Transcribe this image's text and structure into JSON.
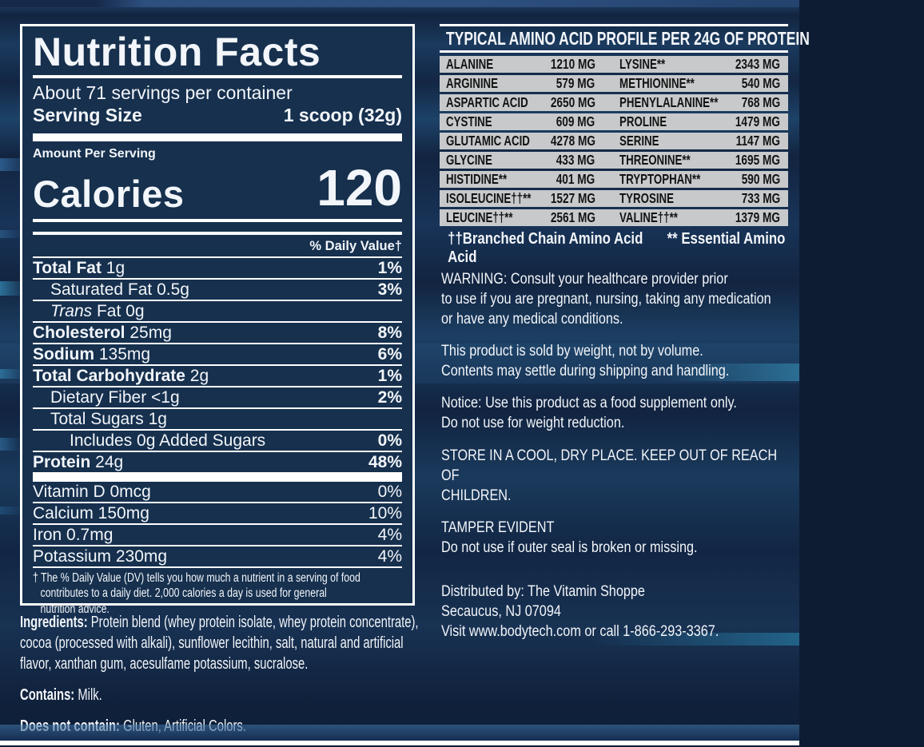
{
  "colors": {
    "background_navy": "#16304e",
    "panel_border": "#ffffff",
    "amino_row_silver": "#c7c9cb",
    "text_white": "#f2f5f9",
    "amino_text_black": "#131313"
  },
  "nutrition_panel": {
    "title": "Nutrition Facts",
    "servings": "About 71 servings per container",
    "serving_size_label": "Serving Size",
    "serving_size_value": "1 scoop (32g)",
    "amount_per_serving": "Amount Per Serving",
    "calories_label": "Calories",
    "calories_value": "120",
    "daily_value_header": "% Daily Value†",
    "rows": [
      {
        "bold": "Total Fat",
        "rest": "1g",
        "pct": "1%",
        "indent": 0,
        "pct_bold": true
      },
      {
        "rest": "Saturated Fat 0.5g",
        "pct": "3%",
        "indent": 1,
        "pct_bold": true
      },
      {
        "italic": "Trans",
        "rest": "Fat 0g",
        "pct": "",
        "indent": 1,
        "pct_bold": true
      },
      {
        "bold": "Cholesterol",
        "rest": "25mg",
        "pct": "8%",
        "indent": 0,
        "pct_bold": true
      },
      {
        "bold": "Sodium",
        "rest": "135mg",
        "pct": "6%",
        "indent": 0,
        "pct_bold": true
      },
      {
        "bold": "Total Carbohydrate",
        "rest": "2g",
        "pct": "1%",
        "indent": 0,
        "pct_bold": true
      },
      {
        "rest": "Dietary Fiber <1g",
        "pct": "2%",
        "indent": 1,
        "pct_bold": true
      },
      {
        "rest": "Total Sugars 1g",
        "pct": "",
        "indent": 1,
        "pct_bold": true
      },
      {
        "rest": "Includes 0g Added Sugars",
        "pct": "0%",
        "indent": 2,
        "pct_bold": true
      },
      {
        "bold": "Protein",
        "rest": "24g",
        "pct": "48%",
        "indent": 0,
        "pct_bold": true
      }
    ],
    "vitamin_rows": [
      {
        "rest": "Vitamin D 0mcg",
        "pct": "0%",
        "indent": 0,
        "pct_bold": false
      },
      {
        "rest": "Calcium 150mg",
        "pct": "10%",
        "indent": 0,
        "pct_bold": false
      },
      {
        "rest": "Iron 0.7mg",
        "pct": "4%",
        "indent": 0,
        "pct_bold": false
      },
      {
        "rest": "Potassium 230mg",
        "pct": "4%",
        "indent": 0,
        "pct_bold": false
      }
    ],
    "footnote": "† The % Daily Value (DV) tells you how much a nutrient in a serving of food\ncontributes to a daily diet. 2,000 calories a day is used for general\nnutrition advice."
  },
  "amino_table": {
    "title": "TYPICAL AMINO ACID PROFILE PER 24G OF PROTEIN",
    "rows": [
      [
        "Alanine",
        "1210 mg",
        "Lysine**",
        "2343 mg"
      ],
      [
        "Arginine",
        "579 mg",
        "Methionine**",
        "540 mg"
      ],
      [
        "Aspartic Acid",
        "2650 mg",
        "Phenylalanine**",
        "768 mg"
      ],
      [
        "Cystine",
        "609 mg",
        "Proline",
        "1479 mg"
      ],
      [
        "Glutamic Acid",
        "4278 mg",
        "Serine",
        "1147 mg"
      ],
      [
        "Glycine",
        "433 mg",
        "Threonine**",
        "1695 mg"
      ],
      [
        "Histidine**",
        "401 mg",
        "Tryptophan**",
        "590 mg"
      ],
      [
        "Isoleucine††**",
        "1527 mg",
        "Tyrosine",
        "733 mg"
      ],
      [
        "Leucine††**",
        "2561 mg",
        "Valine††**",
        "1379 mg"
      ]
    ],
    "footnote_left": "††Branched Chain Amino Acid",
    "footnote_right": "** Essential Amino Acid"
  },
  "info_paragraphs": [
    "WARNING: Consult your healthcare provider prior\nto use if you are pregnant, nursing, taking any medication\nor have any medical conditions.",
    "This product is sold by weight, not by volume.\nContents may settle during shipping and handling.",
    "Notice: Use this product as a food supplement only.\nDo not use for weight reduction.",
    "STORE IN A COOL, DRY PLACE. KEEP OUT OF REACH OF\nCHILDREN.",
    "TAMPER EVIDENT\nDo not use if outer seal is broken or missing."
  ],
  "distributor": "Distributed by: The Vitamin Shoppe\nSecaucus, NJ 07094\nVisit www.bodytech.com or call 1-866-293-3367.",
  "ingredients": {
    "label": "Ingredients:",
    "text": " Protein blend (whey protein isolate, whey protein concentrate),\ncocoa (processed with alkali), sunflower lecithin, salt, natural and artificial\nflavor, xanthan gum, acesulfame potassium, sucralose."
  },
  "contains": {
    "label": "Contains:",
    "text": " Milk."
  },
  "does_not_contain": {
    "label": "Does not contain:",
    "text": " Gluten, Artificial Colors."
  }
}
